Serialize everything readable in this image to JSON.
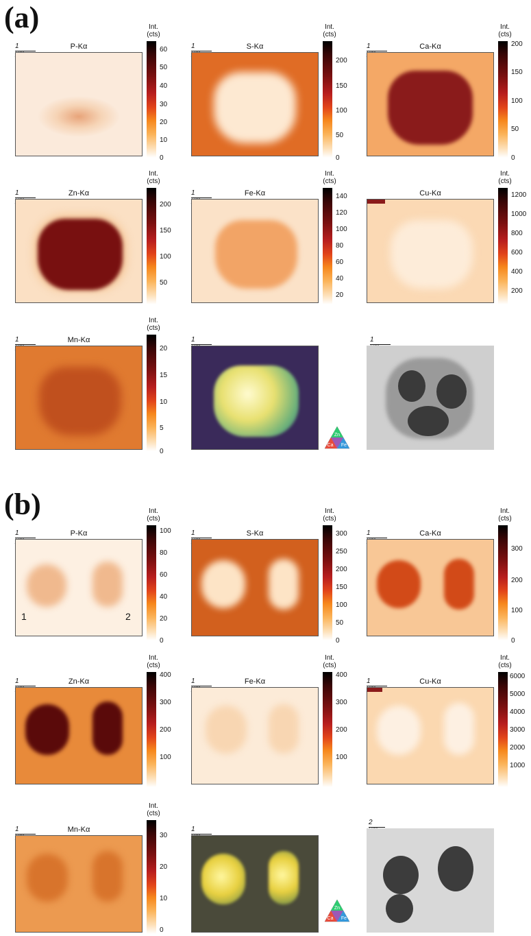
{
  "figure": {
    "section_a_label": "(a)",
    "section_b_label": "(b)",
    "cbar_title_line1": "Int.",
    "cbar_title_line2": "(cts)",
    "rgb_legend": {
      "top": "Zn",
      "left": "Ca",
      "right": "Fe"
    },
    "a": {
      "scale_1um": "1 μm",
      "panels": [
        {
          "element": "P-Kα",
          "ticks": [
            "60",
            "50",
            "40",
            "30",
            "20",
            "10",
            "0"
          ]
        },
        {
          "element": "S-Kα",
          "ticks": [
            "200",
            "150",
            "100",
            "50",
            "0"
          ]
        },
        {
          "element": "Ca-Kα",
          "ticks": [
            "200",
            "150",
            "100",
            "50",
            "0"
          ]
        },
        {
          "element": "Zn-Kα",
          "ticks": [
            "200",
            "150",
            "100",
            "50"
          ]
        },
        {
          "element": "Fe-Kα",
          "ticks": [
            "140",
            "120",
            "100",
            "80",
            "60",
            "40",
            "20"
          ]
        },
        {
          "element": "Cu-Kα",
          "ticks": [
            "1200",
            "1000",
            "800",
            "600",
            "400",
            "200"
          ]
        },
        {
          "element": "Mn-Kα",
          "ticks": [
            "20",
            "15",
            "10",
            "5",
            "0"
          ]
        }
      ],
      "em_scale": "1 μm"
    },
    "b": {
      "scale_1um": "1 μm",
      "cell_labels": [
        "1",
        "2"
      ],
      "panels": [
        {
          "element": "P-Kα",
          "ticks": [
            "100",
            "80",
            "60",
            "40",
            "20",
            "0"
          ]
        },
        {
          "element": "S-Kα",
          "ticks": [
            "300",
            "250",
            "200",
            "150",
            "100",
            "50",
            "0"
          ]
        },
        {
          "element": "Ca-Kα",
          "ticks": [
            "300",
            "200",
            "100",
            "0"
          ]
        },
        {
          "element": "Zn-Kα",
          "ticks": [
            "400",
            "300",
            "200",
            "100"
          ]
        },
        {
          "element": "Fe-Kα",
          "ticks": [
            "400",
            "300",
            "200",
            "100"
          ]
        },
        {
          "element": "Cu-Kα",
          "ticks": [
            "6000",
            "5000",
            "4000",
            "3000",
            "2000",
            "1000"
          ]
        },
        {
          "element": "Mn-Kα",
          "ticks": [
            "30",
            "20",
            "10",
            "0"
          ]
        }
      ],
      "em_scale": "2 μm"
    },
    "colors": {
      "map_bg_light": "#fbe3c8",
      "map_bg_dark": "#e0772e",
      "cell_dark": "#7a1212",
      "em_bg": "#cfcfcf"
    }
  }
}
